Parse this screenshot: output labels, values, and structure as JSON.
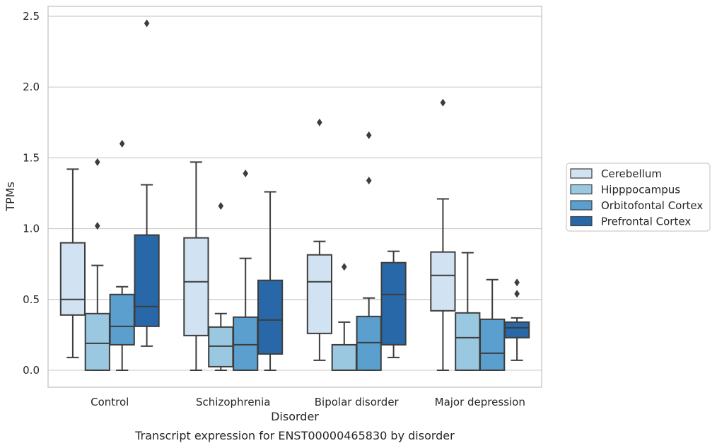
{
  "chart_data": {
    "type": "boxplot",
    "caption": "Transcript expression for ENST00000465830 by disorder",
    "xlabel": "Disorder",
    "ylabel": "TPMs",
    "ylim": [
      -0.12,
      2.57
    ],
    "yticks": [
      0.0,
      0.5,
      1.0,
      1.5,
      2.0,
      2.5
    ],
    "ytick_labels": [
      "0.0",
      "0.5",
      "1.0",
      "1.5",
      "2.0",
      "2.5"
    ],
    "grid": "horizontal",
    "legend_position": "right",
    "categories": [
      "Control",
      "Schizophrenia",
      "Bipolar disorder",
      "Major depression"
    ],
    "series": [
      {
        "name": "Cerebellum",
        "color": "#d1e2f2",
        "boxes": [
          {
            "whislo": 0.09,
            "q1": 0.39,
            "med": 0.5,
            "q3": 0.9,
            "whishi": 1.42,
            "fliers": []
          },
          {
            "whislo": 0.0,
            "q1": 0.245,
            "med": 0.625,
            "q3": 0.935,
            "whishi": 1.47,
            "fliers": []
          },
          {
            "whislo": 0.07,
            "q1": 0.26,
            "med": 0.625,
            "q3": 0.815,
            "whishi": 0.91,
            "fliers": [
              1.75
            ]
          },
          {
            "whislo": 0.0,
            "q1": 0.42,
            "med": 0.67,
            "q3": 0.835,
            "whishi": 1.21,
            "fliers": [
              1.89
            ]
          }
        ]
      },
      {
        "name": "Hipppocampus",
        "color": "#9ac8e0",
        "boxes": [
          {
            "whislo": 0.0,
            "q1": 0.0,
            "med": 0.19,
            "q3": 0.4,
            "whishi": 0.74,
            "fliers": [
              1.02,
              1.47
            ]
          },
          {
            "whislo": 0.0,
            "q1": 0.025,
            "med": 0.17,
            "q3": 0.305,
            "whishi": 0.4,
            "fliers": [
              1.16
            ]
          },
          {
            "whislo": 0.0,
            "q1": 0.0,
            "med": 0.0,
            "q3": 0.18,
            "whishi": 0.34,
            "fliers": [
              0.73
            ]
          },
          {
            "whislo": 0.0,
            "q1": 0.0,
            "med": 0.23,
            "q3": 0.405,
            "whishi": 0.83,
            "fliers": []
          }
        ]
      },
      {
        "name": "Orbitofontal Cortex",
        "color": "#5a9fcd",
        "boxes": [
          {
            "whislo": 0.0,
            "q1": 0.18,
            "med": 0.31,
            "q3": 0.535,
            "whishi": 0.59,
            "fliers": [
              1.6
            ]
          },
          {
            "whislo": 0.0,
            "q1": 0.0,
            "med": 0.18,
            "q3": 0.375,
            "whishi": 0.79,
            "fliers": [
              1.39
            ]
          },
          {
            "whislo": 0.0,
            "q1": 0.0,
            "med": 0.195,
            "q3": 0.38,
            "whishi": 0.51,
            "fliers": [
              1.34,
              1.66
            ]
          },
          {
            "whislo": 0.0,
            "q1": 0.0,
            "med": 0.12,
            "q3": 0.36,
            "whishi": 0.64,
            "fliers": []
          }
        ]
      },
      {
        "name": "Prefrontal Cortex",
        "color": "#2868a9",
        "boxes": [
          {
            "whislo": 0.17,
            "q1": 0.31,
            "med": 0.45,
            "q3": 0.955,
            "whishi": 1.31,
            "fliers": [
              2.45
            ]
          },
          {
            "whislo": 0.0,
            "q1": 0.115,
            "med": 0.355,
            "q3": 0.635,
            "whishi": 1.26,
            "fliers": []
          },
          {
            "whislo": 0.09,
            "q1": 0.18,
            "med": 0.535,
            "q3": 0.76,
            "whishi": 0.84,
            "fliers": []
          },
          {
            "whislo": 0.07,
            "q1": 0.23,
            "med": 0.3,
            "q3": 0.34,
            "whishi": 0.37,
            "fliers": [
              0.54,
              0.62
            ]
          }
        ]
      }
    ]
  }
}
